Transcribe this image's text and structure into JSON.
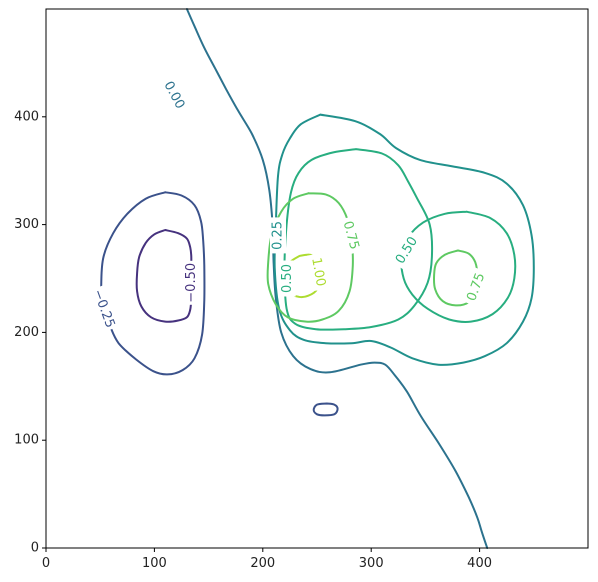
{
  "chart_data": {
    "type": "contour",
    "title": "",
    "xlabel": "",
    "ylabel": "",
    "xlim": [
      0,
      500
    ],
    "ylim": [
      0,
      500
    ],
    "grid": false,
    "x_ticks": [
      0,
      100,
      200,
      300,
      400
    ],
    "y_ticks": [
      0,
      100,
      200,
      300,
      400
    ],
    "levels": [
      {
        "value": -0.5,
        "label": "−0.50",
        "color": "#46327e"
      },
      {
        "value": -0.25,
        "label": "−0.25",
        "color": "#3b528b"
      },
      {
        "value": 0.0,
        "label": "0.00",
        "color": "#2c728e"
      },
      {
        "value": 0.25,
        "label": "0.25",
        "color": "#21918c"
      },
      {
        "value": 0.5,
        "label": "0.50",
        "color": "#28ae80"
      },
      {
        "value": 0.75,
        "label": "0.75",
        "color": "#5ec962"
      },
      {
        "value": 1.0,
        "label": "1.00",
        "color": "#addc30"
      }
    ],
    "contours": [
      {
        "level": -0.5,
        "points": [
          [
            110,
            295
          ],
          [
            122,
            292
          ],
          [
            130,
            287
          ],
          [
            133,
            279
          ],
          [
            134,
            270
          ],
          [
            134,
            250
          ],
          [
            134,
            232
          ],
          [
            133,
            221
          ],
          [
            130,
            214
          ],
          [
            122,
            211
          ],
          [
            110,
            210
          ],
          [
            97,
            214
          ],
          [
            88,
            224
          ],
          [
            84,
            238
          ],
          [
            84,
            255
          ],
          [
            86,
            270
          ],
          [
            92,
            283
          ],
          [
            100,
            291
          ],
          [
            110,
            295
          ]
        ]
      },
      {
        "level": -0.25,
        "points": [
          [
            110,
            330
          ],
          [
            125,
            327
          ],
          [
            137,
            318
          ],
          [
            143,
            303
          ],
          [
            145,
            285
          ],
          [
            146,
            262
          ],
          [
            146,
            230
          ],
          [
            144,
            198
          ],
          [
            137,
            176
          ],
          [
            126,
            165
          ],
          [
            112,
            161
          ],
          [
            99,
            164
          ],
          [
            83,
            175
          ],
          [
            67,
            190
          ],
          [
            59,
            206
          ],
          [
            52,
            226
          ],
          [
            51,
            247
          ],
          [
            53,
            270
          ],
          [
            62,
            292
          ],
          [
            75,
            310
          ],
          [
            92,
            324
          ],
          [
            110,
            330
          ]
        ]
      },
      {
        "level": -0.25,
        "points": [
          [
            259,
            134
          ],
          [
            266,
            133
          ],
          [
            269,
            129
          ],
          [
            266,
            124
          ],
          [
            257,
            123
          ],
          [
            250,
            124
          ],
          [
            247,
            128
          ],
          [
            250,
            133
          ],
          [
            259,
            134
          ]
        ]
      },
      {
        "level": 0.0,
        "points": [
          [
            130,
            500
          ],
          [
            137,
            484
          ],
          [
            146,
            464
          ],
          [
            156,
            445
          ],
          [
            166,
            426
          ],
          [
            177,
            406
          ],
          [
            190,
            384
          ],
          [
            200,
            360
          ],
          [
            206,
            332
          ],
          [
            209,
            300
          ],
          [
            210,
            265
          ],
          [
            212,
            232
          ],
          [
            217,
            200
          ],
          [
            228,
            178
          ],
          [
            244,
            166
          ],
          [
            262,
            163
          ],
          [
            290,
            170
          ],
          [
            303,
            172
          ],
          [
            313,
            170
          ],
          [
            322,
            160
          ],
          [
            333,
            145
          ],
          [
            346,
            122
          ],
          [
            363,
            96
          ],
          [
            378,
            71
          ],
          [
            390,
            47
          ],
          [
            398,
            28
          ],
          [
            402,
            15
          ],
          [
            407,
            0
          ]
        ]
      },
      {
        "level": 0.25,
        "points": [
          [
            253,
            402
          ],
          [
            285,
            396
          ],
          [
            308,
            384
          ],
          [
            323,
            371
          ],
          [
            345,
            360
          ],
          [
            375,
            354
          ],
          [
            405,
            348
          ],
          [
            425,
            338
          ],
          [
            440,
            318
          ],
          [
            448,
            290
          ],
          [
            450,
            260
          ],
          [
            448,
            232
          ],
          [
            440,
            210
          ],
          [
            425,
            190
          ],
          [
            405,
            178
          ],
          [
            385,
            172
          ],
          [
            362,
            170
          ],
          [
            338,
            176
          ],
          [
            318,
            186
          ],
          [
            300,
            192
          ],
          [
            282,
            190
          ],
          [
            258,
            190
          ],
          [
            238,
            193
          ],
          [
            225,
            202
          ],
          [
            215,
            222
          ],
          [
            211,
            260
          ],
          [
            212,
            300
          ],
          [
            214,
            345
          ],
          [
            218,
            365
          ],
          [
            225,
            380
          ],
          [
            235,
            393
          ],
          [
            253,
            402
          ]
        ]
      },
      {
        "level": 0.5,
        "points": [
          [
            286,
            370
          ],
          [
            310,
            366
          ],
          [
            325,
            355
          ],
          [
            334,
            340
          ],
          [
            342,
            325
          ],
          [
            354,
            300
          ],
          [
            356,
            270
          ],
          [
            352,
            246
          ],
          [
            340,
            225
          ],
          [
            325,
            212
          ],
          [
            300,
            205
          ],
          [
            275,
            203
          ],
          [
            249,
            203
          ],
          [
            230,
            208
          ],
          [
            222,
            222
          ],
          [
            220,
            262
          ],
          [
            222,
            300
          ],
          [
            226,
            330
          ],
          [
            233,
            348
          ],
          [
            245,
            360
          ],
          [
            265,
            367
          ],
          [
            286,
            370
          ]
        ]
      },
      {
        "level": 0.5,
        "points": [
          [
            388,
            312
          ],
          [
            410,
            306
          ],
          [
            425,
            292
          ],
          [
            432,
            272
          ],
          [
            432,
            250
          ],
          [
            426,
            232
          ],
          [
            412,
            217
          ],
          [
            392,
            210
          ],
          [
            372,
            212
          ],
          [
            352,
            222
          ],
          [
            338,
            235
          ],
          [
            330,
            250
          ],
          [
            328,
            270
          ],
          [
            334,
            288
          ],
          [
            348,
            302
          ],
          [
            368,
            310
          ],
          [
            388,
            312
          ]
        ]
      },
      {
        "level": 0.75,
        "points": [
          [
            242,
            329
          ],
          [
            258,
            328
          ],
          [
            270,
            320
          ],
          [
            278,
            305
          ],
          [
            282,
            285
          ],
          [
            283,
            262
          ],
          [
            280,
            238
          ],
          [
            270,
            220
          ],
          [
            255,
            212
          ],
          [
            240,
            210
          ],
          [
            223,
            214
          ],
          [
            212,
            226
          ],
          [
            205,
            245
          ],
          [
            205,
            265
          ],
          [
            208,
            290
          ],
          [
            217,
            312
          ],
          [
            228,
            324
          ],
          [
            242,
            329
          ]
        ]
      },
      {
        "level": 0.75,
        "points": [
          [
            380,
            276
          ],
          [
            390,
            273
          ],
          [
            396,
            265
          ],
          [
            398,
            252
          ],
          [
            397,
            238
          ],
          [
            390,
            228
          ],
          [
            378,
            225
          ],
          [
            366,
            229
          ],
          [
            359,
            240
          ],
          [
            358,
            253
          ],
          [
            360,
            264
          ],
          [
            368,
            272
          ],
          [
            380,
            276
          ]
        ]
      },
      {
        "level": 1.0,
        "points": [
          [
            234,
            271
          ],
          [
            244,
            272
          ],
          [
            250,
            266
          ],
          [
            252,
            254
          ],
          [
            250,
            240
          ],
          [
            242,
            234
          ],
          [
            233,
            233
          ],
          [
            224,
            237
          ],
          [
            219,
            245
          ],
          [
            220,
            256
          ],
          [
            225,
            265
          ],
          [
            234,
            271
          ]
        ]
      }
    ],
    "clabels": [
      {
        "text": "0.00",
        "level": 0.0,
        "x": 118,
        "y": 420,
        "angle": 62
      },
      {
        "text": "−0.25",
        "level": -0.25,
        "x": 53,
        "y": 222,
        "angle": 70
      },
      {
        "text": "−0.50",
        "level": -0.5,
        "x": 134,
        "y": 246,
        "angle": -90
      },
      {
        "text": "0.25",
        "level": 0.25,
        "x": 214,
        "y": 290,
        "angle": -90
      },
      {
        "text": "0.50",
        "level": 0.5,
        "x": 223,
        "y": 250,
        "angle": -90
      },
      {
        "text": "0.75",
        "level": 0.75,
        "x": 281,
        "y": 290,
        "angle": 75
      },
      {
        "text": "1.00",
        "level": 1.0,
        "x": 251,
        "y": 256,
        "angle": 80
      },
      {
        "text": "0.50",
        "level": 0.5,
        "x": 333,
        "y": 276,
        "angle": -58
      },
      {
        "text": "0.75",
        "level": 0.75,
        "x": 397,
        "y": 242,
        "angle": -70
      }
    ]
  }
}
